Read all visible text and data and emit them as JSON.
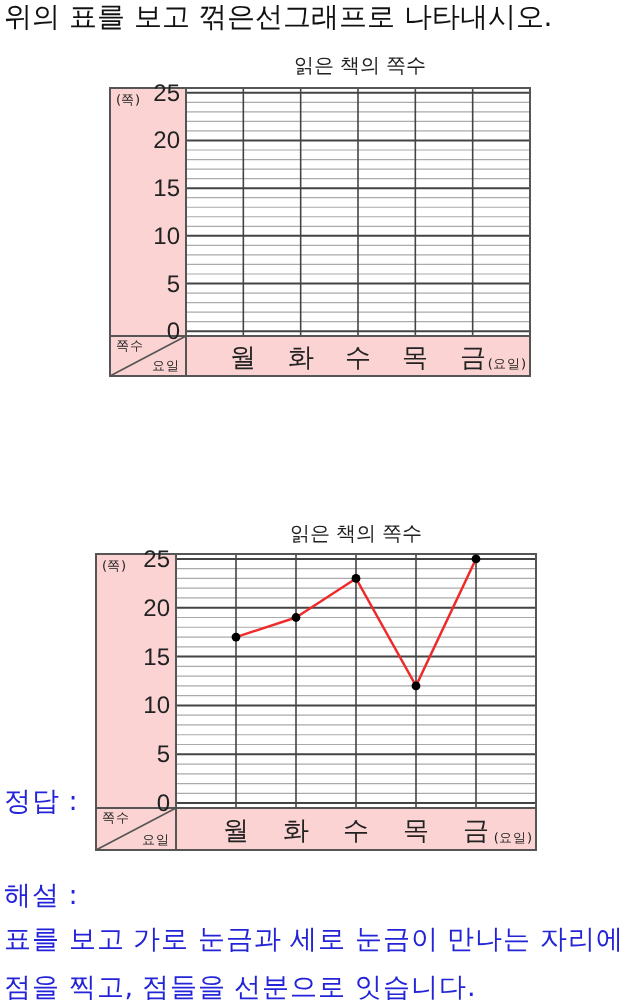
{
  "chart_data": [
    {
      "type": "line",
      "title": "읽은 책의 쪽수",
      "ylabel": "(쪽)",
      "xlabel": "(요일)",
      "categories": [
        "월",
        "화",
        "수",
        "목",
        "금"
      ],
      "series": [
        {
          "values": [
            null,
            null,
            null,
            null,
            null
          ]
        }
      ],
      "ylim": [
        -0.5,
        25.5
      ],
      "yticks": [
        0,
        5,
        10,
        15,
        20,
        25
      ],
      "grid": true,
      "annotations": [
        "쪽수",
        "요일",
        "위의 표를 보고 꺾은선그래프로 나타내시오."
      ]
    },
    {
      "type": "line",
      "title": "읽은 책의 쪽수",
      "ylabel": "(쪽)",
      "xlabel": "(요일)",
      "categories": [
        "월",
        "화",
        "수",
        "목",
        "금"
      ],
      "series": [
        {
          "color": "#ee2a2a",
          "values": [
            17,
            19,
            23,
            12,
            25
          ]
        }
      ],
      "marker": "circle",
      "ylim": [
        -0.5,
        25.5
      ],
      "yticks": [
        0,
        5,
        10,
        15,
        20,
        25
      ],
      "grid": true,
      "annotations": [
        "쪽수",
        "요일",
        "정답 :",
        "해설 :",
        "표를 보고 가로 눈금과 세로 눈금이 만나는 자리에 점을 찍고, 점들을 선분으로 잇습니다."
      ]
    }
  ]
}
